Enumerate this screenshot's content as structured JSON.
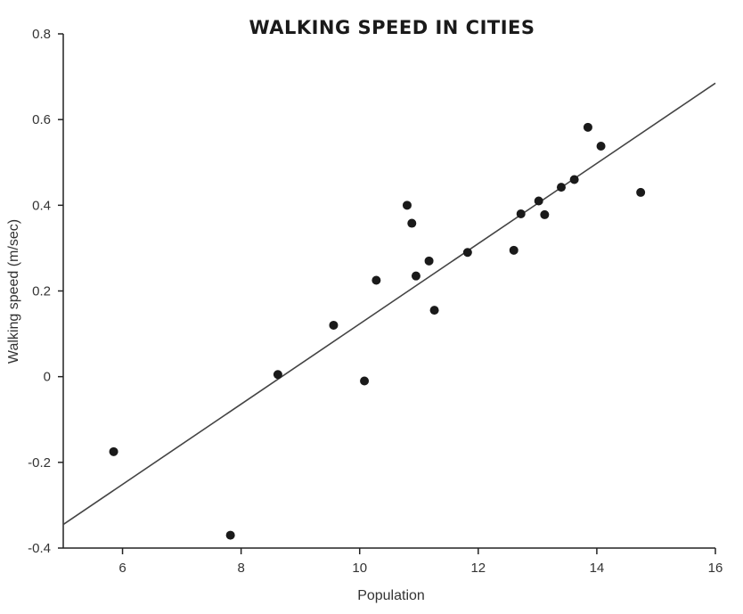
{
  "chart_data": {
    "type": "scatter",
    "title": "WALKING SPEED IN CITIES",
    "xlabel": "Population",
    "ylabel": "Walking speed (m/sec)",
    "xlim": [
      5,
      16
    ],
    "ylim": [
      -0.4,
      0.8
    ],
    "x_ticks": [
      6,
      8,
      10,
      12,
      14,
      16
    ],
    "y_ticks": [
      -0.4,
      -0.2,
      0,
      0.2,
      0.4,
      0.6,
      0.8
    ],
    "x_tick_labels": [
      "6",
      "8",
      "10",
      "12",
      "14",
      "16"
    ],
    "y_tick_labels": [
      "-0.4",
      "-0.2",
      "0",
      "0.2",
      "0.4",
      "0.6",
      "0.8"
    ],
    "grid": false,
    "points": [
      {
        "x": 5.85,
        "y": -0.175
      },
      {
        "x": 7.82,
        "y": -0.37
      },
      {
        "x": 8.62,
        "y": 0.005
      },
      {
        "x": 9.56,
        "y": 0.12
      },
      {
        "x": 10.08,
        "y": -0.01
      },
      {
        "x": 10.28,
        "y": 0.225
      },
      {
        "x": 10.8,
        "y": 0.4
      },
      {
        "x": 10.88,
        "y": 0.358
      },
      {
        "x": 10.95,
        "y": 0.235
      },
      {
        "x": 11.17,
        "y": 0.27
      },
      {
        "x": 11.26,
        "y": 0.155
      },
      {
        "x": 11.82,
        "y": 0.29
      },
      {
        "x": 12.6,
        "y": 0.295
      },
      {
        "x": 12.72,
        "y": 0.38
      },
      {
        "x": 13.02,
        "y": 0.41
      },
      {
        "x": 13.12,
        "y": 0.378
      },
      {
        "x": 13.4,
        "y": 0.442
      },
      {
        "x": 13.62,
        "y": 0.46
      },
      {
        "x": 13.85,
        "y": 0.582
      },
      {
        "x": 14.07,
        "y": 0.538
      },
      {
        "x": 14.74,
        "y": 0.43
      }
    ],
    "fit_line": {
      "x": [
        5,
        16
      ],
      "y": [
        -0.345,
        0.685
      ]
    },
    "colors": {
      "point": "#1a1a1a",
      "line": "#444444",
      "axis": "#222222"
    }
  }
}
